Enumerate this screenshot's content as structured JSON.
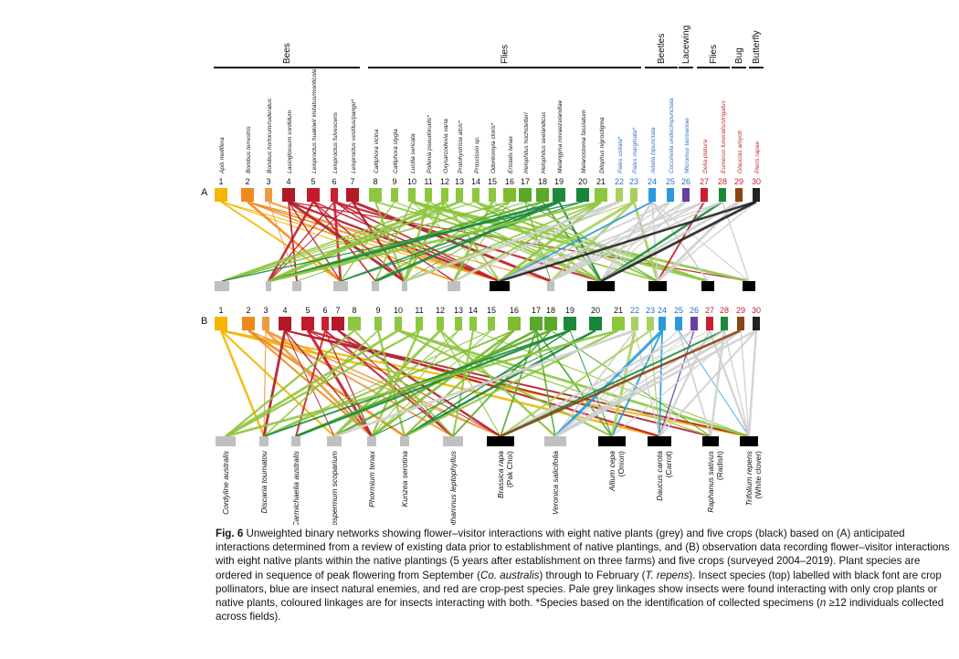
{
  "figure": {
    "groups": [
      {
        "label": "Bees",
        "from": 1,
        "to": 7
      },
      {
        "label": "Flies",
        "from": 8,
        "to": 23
      },
      {
        "label": "Beetles",
        "from": 24,
        "to": 25
      },
      {
        "label": "Lacewing",
        "from": 26,
        "to": 26
      },
      {
        "label": "Flies",
        "from": 27,
        "to": 28
      },
      {
        "label": "Bug",
        "from": 29,
        "to": 29
      },
      {
        "label": "Butterfly",
        "from": 30,
        "to": 30
      }
    ],
    "insects": [
      {
        "n": "1",
        "name": "Apis mellifera",
        "color": "#f5b500",
        "label": "black"
      },
      {
        "n": "2",
        "name": "Bombus terrestris",
        "color": "#ee8a1c",
        "label": "black"
      },
      {
        "n": "3",
        "name": "Bombus hortorum/ruderatus",
        "color": "#f09a40",
        "label": "black"
      },
      {
        "n": "4",
        "name": "Lasioglossum sordidum",
        "color": "#b01a26",
        "label": "black"
      },
      {
        "n": "5",
        "name": "Leioproctus huakiwi/ imitatus/monticola*",
        "color": "#c21b2a",
        "label": "black"
      },
      {
        "n": "6",
        "name": "Leioproctus fulvescens",
        "color": "#c8202f",
        "label": "black"
      },
      {
        "n": "7",
        "name": "Leioproctus vestitus/pango*",
        "color": "#b51a28",
        "label": "black"
      },
      {
        "n": "8",
        "name": "Calliphora vicina",
        "color": "#8dc63f",
        "label": "black"
      },
      {
        "n": "9",
        "name": "Calliphora stygia",
        "color": "#8dc63f",
        "label": "black"
      },
      {
        "n": "10",
        "name": "Lucilia sericata",
        "color": "#8dc63f",
        "label": "black"
      },
      {
        "n": "11",
        "name": "Pollenia pseudorudis*",
        "color": "#8dc63f",
        "label": "black"
      },
      {
        "n": "12",
        "name": "Oxysarcodexia varia",
        "color": "#8dc63f",
        "label": "black"
      },
      {
        "n": "13",
        "name": "Protohystricia alcis*",
        "color": "#8dc63f",
        "label": "black"
      },
      {
        "n": "14",
        "name": "Proscissio sp.",
        "color": "#8dc63f",
        "label": "black"
      },
      {
        "n": "15",
        "name": "Odontomyia cloris*",
        "color": "#8dc63f",
        "label": "black"
      },
      {
        "n": "16",
        "name": "Eristalis tenax",
        "color": "#7dbb2f",
        "label": "black"
      },
      {
        "n": "17",
        "name": "Helophilus hochstetteri",
        "color": "#5aa829",
        "label": "black"
      },
      {
        "n": "18",
        "name": "Helophilus seelandicus",
        "color": "#5aa829",
        "label": "black"
      },
      {
        "n": "19",
        "name": "Melangyna novaezelandiae",
        "color": "#1a8a3a",
        "label": "black"
      },
      {
        "n": "20",
        "name": "Melanostoma fasciatum",
        "color": "#17843a",
        "label": "black"
      },
      {
        "n": "21",
        "name": "Dilophus nigrostigma",
        "color": "#8dc63f",
        "label": "black"
      },
      {
        "n": "22",
        "name": "Pales usitata*",
        "color": "#a9d05f",
        "label": "blue"
      },
      {
        "n": "23",
        "name": "Pales marginata*",
        "color": "#a9d05f",
        "label": "blue"
      },
      {
        "n": "24",
        "name": "Adalia bipunctata",
        "color": "#2a9bd8",
        "label": "blue"
      },
      {
        "n": "25",
        "name": "Coccinella undecimpunctata",
        "color": "#2a9bd8",
        "label": "blue"
      },
      {
        "n": "26",
        "name": "Micromus tasmaniae",
        "color": "#6a3fa0",
        "label": "blue"
      },
      {
        "n": "27",
        "name": "Delia platura",
        "color": "#c8202f",
        "label": "red"
      },
      {
        "n": "28",
        "name": "Eumerus funeralis/strigatus",
        "color": "#1a8a3a",
        "label": "red"
      },
      {
        "n": "29",
        "name": "Glaucias amyoti",
        "color": "#8b4513",
        "label": "red"
      },
      {
        "n": "30",
        "name": "Pieris rapae",
        "color": "#222222",
        "label": "red"
      }
    ],
    "plants": [
      {
        "name": "Cordyline australis",
        "common": "",
        "type": "native"
      },
      {
        "name": "Discaria toumatou",
        "common": "",
        "type": "native"
      },
      {
        "name": "Carmichaelia australis",
        "common": "",
        "type": "native"
      },
      {
        "name": "Leptospermum scoparium",
        "common": "",
        "type": "native"
      },
      {
        "name": "Phormium tenax",
        "common": "",
        "type": "native"
      },
      {
        "name": "Kunzea serotina",
        "common": "",
        "type": "native"
      },
      {
        "name": "Ozothamnus leptophyllus",
        "common": "",
        "type": "native"
      },
      {
        "name": "Brassica rapa",
        "common": "(Pak Choi)",
        "type": "crop"
      },
      {
        "name": "Veronica salicifolia",
        "common": "",
        "type": "native"
      },
      {
        "name": "Allium cepa",
        "common": "(Onion)",
        "type": "crop"
      },
      {
        "name": "Daucus carota",
        "common": "(Carrot)",
        "type": "crop"
      },
      {
        "name": "Raphanus sativus",
        "common": "(Radish)",
        "type": "crop"
      },
      {
        "name": "Trifolium repens",
        "common": "(White clover)",
        "type": "crop"
      }
    ],
    "panels": [
      {
        "label": "A"
      },
      {
        "label": "B"
      }
    ],
    "colors": {
      "native": "#c0c0c0",
      "crop": "#000000",
      "grey_link": "#cfcfcf",
      "blue_label": "#2d6fc4",
      "red_label": "#c8202f"
    }
  },
  "caption": {
    "fig_label": "Fig. 6",
    "part1": " Unweighted binary networks showing flower–visitor interactions with eight native plants (grey) and five crops (black) based on (A) anticipated interactions determined from a review of existing data prior to establishment of native plantings, and (B) observation data recording flower–visitor interactions with eight native plants within the native plantings (5 years after establishment on three farms) and five crops (surveyed 2004–2019). Plant species are ordered in sequence of peak flowering from September (",
    "co": "Co. australis",
    "part2": ") through to February (",
    "tr": "T. repens",
    "part3": "). Insect species (top) labelled with black font are crop pollinators, blue are insect natural enemies, and red are crop-pest species. Pale grey linkages show insects were found interacting with only crop plants or native plants, coloured linkages are for insects interacting with both. *Species based on the identification of collected specimens (",
    "n": "n",
    "part4": " ≥12 individuals collected across fields)."
  }
}
